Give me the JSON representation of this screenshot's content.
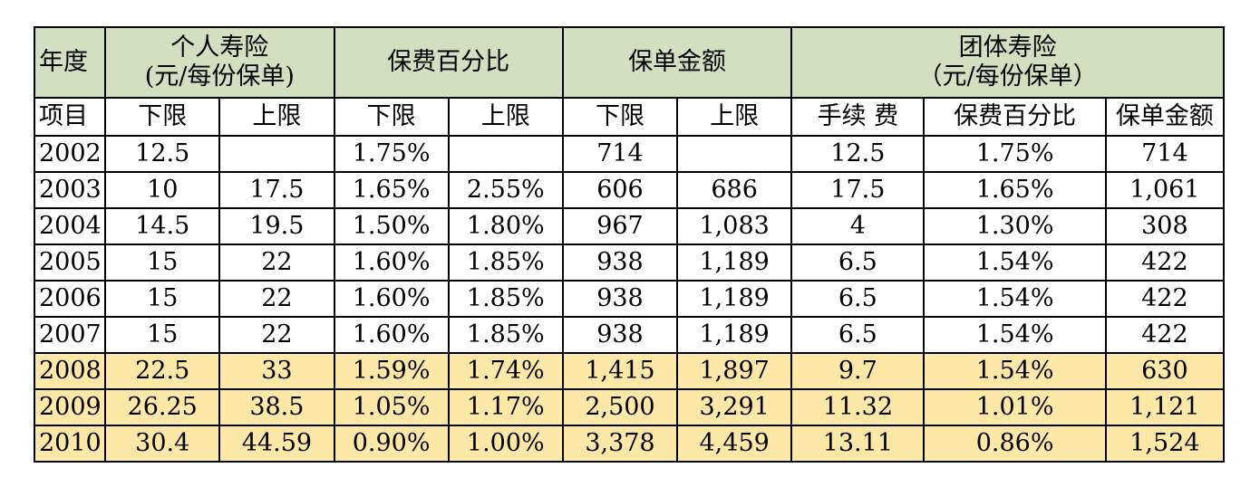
{
  "header_top": {
    "year": "年度",
    "personal_line1": "个人寿险",
    "personal_line2": "(元/每份保单)",
    "premium_pct": "保费百分比",
    "policy_amount": "保单金额",
    "group_line1": "团体寿险",
    "group_line2": "（元/每份保单）"
  },
  "header_sub": [
    "项目",
    "下限",
    "上限",
    "下限",
    "上限",
    "下限",
    "上限",
    "手续 费",
    "保费百分比",
    "保单金额"
  ],
  "rows": [
    {
      "year": "2002",
      "p_low": "12.5",
      "p_high": "",
      "pct_low": "1.75%",
      "pct_high": "",
      "amt_low": "714",
      "amt_high": "",
      "g_fee": "12.5",
      "g_pct": "1.75%",
      "g_amt": "714",
      "highlight": false
    },
    {
      "year": "2003",
      "p_low": "10",
      "p_high": "17.5",
      "pct_low": "1.65%",
      "pct_high": "2.55%",
      "amt_low": "606",
      "amt_high": "686",
      "g_fee": "17.5",
      "g_pct": "1.65%",
      "g_amt": "1,061",
      "highlight": false
    },
    {
      "year": "2004",
      "p_low": "14.5",
      "p_high": "19.5",
      "pct_low": "1.50%",
      "pct_high": "1.80%",
      "amt_low": "967",
      "amt_high": "1,083",
      "g_fee": "4",
      "g_pct": "1.30%",
      "g_amt": "308",
      "highlight": false
    },
    {
      "year": "2005",
      "p_low": "15",
      "p_high": "22",
      "pct_low": "1.60%",
      "pct_high": "1.85%",
      "amt_low": "938",
      "amt_high": "1,189",
      "g_fee": "6.5",
      "g_pct": "1.54%",
      "g_amt": "422",
      "highlight": false
    },
    {
      "year": "2006",
      "p_low": "15",
      "p_high": "22",
      "pct_low": "1.60%",
      "pct_high": "1.85%",
      "amt_low": "938",
      "amt_high": "1,189",
      "g_fee": "6.5",
      "g_pct": "1.54%",
      "g_amt": "422",
      "highlight": false
    },
    {
      "year": "2007",
      "p_low": "15",
      "p_high": "22",
      "pct_low": "1.60%",
      "pct_high": "1.85%",
      "amt_low": "938",
      "amt_high": "1,189",
      "g_fee": "6.5",
      "g_pct": "1.54%",
      "g_amt": "422",
      "highlight": false
    },
    {
      "year": "2008",
      "p_low": "22.5",
      "p_high": "33",
      "pct_low": "1.59%",
      "pct_high": "1.74%",
      "amt_low": "1,415",
      "amt_high": "1,897",
      "g_fee": "9.7",
      "g_pct": "1.54%",
      "g_amt": "630",
      "highlight": true
    },
    {
      "year": "2009",
      "p_low": "26.25",
      "p_high": "38.5",
      "pct_low": "1.05%",
      "pct_high": "1.17%",
      "amt_low": "2,500",
      "amt_high": "3,291",
      "g_fee": "11.32",
      "g_pct": "1.01%",
      "g_amt": "1,121",
      "highlight": true
    },
    {
      "year": "2010",
      "p_low": "30.4",
      "p_high": "44.59",
      "pct_low": "0.90%",
      "pct_high": "1.00%",
      "amt_low": "3,378",
      "amt_high": "4,459",
      "g_fee": "13.11",
      "g_pct": "0.86%",
      "g_amt": "1,524",
      "highlight": true
    }
  ],
  "colors": {
    "header_bg": "#d0e0c0",
    "highlight_bg": "#fde8a7",
    "border": "#000000"
  }
}
